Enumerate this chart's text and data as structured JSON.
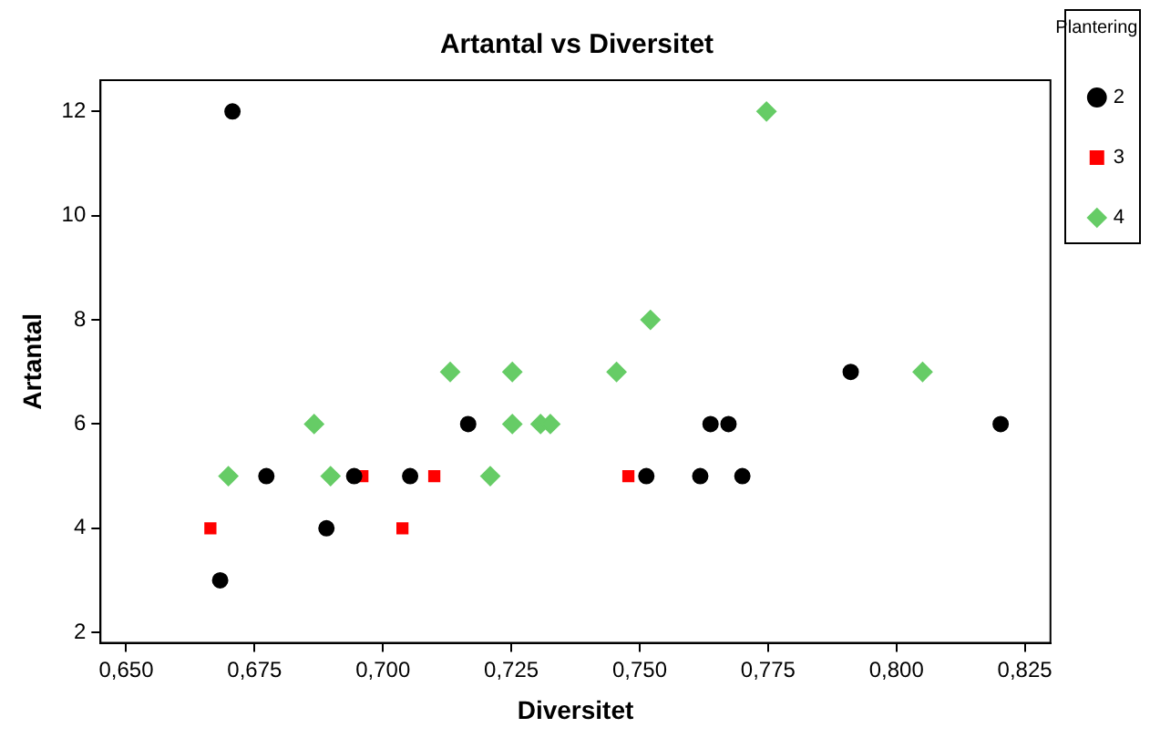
{
  "chart_data": {
    "type": "scatter",
    "title": "Artantal vs Diversitet",
    "xlabel": "Diversitet",
    "ylabel": "Artantal",
    "legend_title": "Plantering",
    "legend": "top right",
    "grid": false,
    "xlim": [
      0.645,
      0.83
    ],
    "xticks": [
      {
        "value": 0.65,
        "label": "0,650"
      },
      {
        "value": 0.675,
        "label": "0,675"
      },
      {
        "value": 0.7,
        "label": "0,700"
      },
      {
        "value": 0.725,
        "label": "0,725"
      },
      {
        "value": 0.75,
        "label": "0,750"
      },
      {
        "value": 0.775,
        "label": "0,775"
      },
      {
        "value": 0.8,
        "label": "0,800"
      },
      {
        "value": 0.825,
        "label": "0,825"
      }
    ],
    "ylim": [
      1.8,
      12.6
    ],
    "yticks": [
      2,
      4,
      6,
      8,
      10,
      12
    ],
    "series": [
      {
        "name": "2",
        "color": "#000000",
        "marker": "circle",
        "x": [
          0.6707,
          0.6683,
          0.6773,
          0.689,
          0.6944,
          0.7053,
          0.7166,
          0.7513,
          0.7618,
          0.7638,
          0.7673,
          0.77,
          0.7911,
          0.8203
        ],
        "values": [
          12,
          3,
          5,
          4,
          5,
          5,
          6,
          5,
          5,
          6,
          6,
          5,
          7,
          6
        ]
      },
      {
        "name": "3",
        "color": "#ff0000",
        "marker": "square",
        "x": [
          0.6664,
          0.696,
          0.71,
          0.7038,
          0.7478
        ],
        "values": [
          4,
          5,
          5,
          4,
          5
        ]
      },
      {
        "name": "4",
        "color": "#66cc66",
        "marker": "diamond",
        "x": [
          0.6699,
          0.6866,
          0.6898,
          0.7131,
          0.7209,
          0.7252,
          0.7252,
          0.7307,
          0.7326,
          0.7455,
          0.7521,
          0.7747,
          0.8051
        ],
        "values": [
          5,
          6,
          5,
          7,
          5,
          7,
          6,
          6,
          6,
          7,
          8,
          12,
          7
        ]
      }
    ]
  }
}
